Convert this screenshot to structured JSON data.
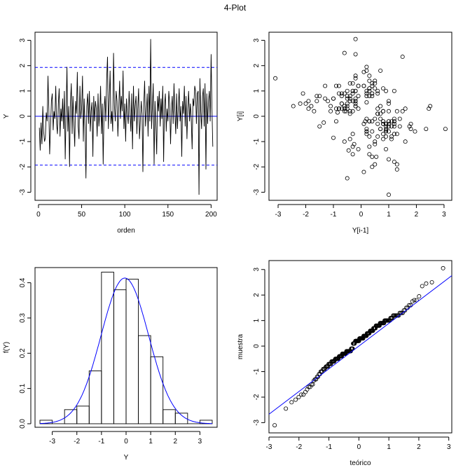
{
  "title": "4-Plot",
  "chart_data": [
    {
      "type": "line",
      "panel": "run-sequence",
      "xlabel": "orden",
      "ylabel": "Y",
      "xlim": [
        -4,
        207
      ],
      "ylim": [
        -3.32,
        3.32
      ],
      "xticks": [
        0,
        50,
        100,
        150,
        200
      ],
      "yticks": [
        -3,
        -2,
        -1,
        0,
        1,
        2,
        3
      ],
      "hlines": [
        {
          "y": 1.93,
          "color": "#0000ff",
          "style": "dashed"
        },
        {
          "y": 0,
          "color": "#0000ff",
          "style": "solid"
        },
        {
          "y": -1.93,
          "color": "#0000ff",
          "style": "dashed"
        }
      ],
      "y": [
        -0.45,
        -1.35,
        -0.25,
        -1.1,
        0.4,
        -0.6,
        -1.0,
        -0.85,
        0.15,
        -0.2,
        1.6,
        0.3,
        -1.5,
        -0.4,
        0.6,
        0.9,
        -0.55,
        0.2,
        -0.1,
        1.2,
        -0.3,
        -0.7,
        0.5,
        1.1,
        -0.8,
        0.3,
        -0.2,
        0.7,
        -0.5,
        1.0,
        -1.7,
        0.2,
        1.95,
        -0.6,
        0.4,
        -2.0,
        0.5,
        1.3,
        -0.7,
        0.8,
        -0.3,
        -1.2,
        0.6,
        0.1,
        1.75,
        -0.4,
        -0.9,
        1.2,
        -0.1,
        0.3,
        1.6,
        -1.0,
        0.7,
        -0.5,
        -2.45,
        0.4,
        0.9,
        -0.3,
        1.0,
        -0.6,
        0.2,
        0.55,
        -1.6,
        0.8,
        -0.2,
        0.6,
        0.3,
        -0.8,
        0.9,
        -0.4,
        0.1,
        1.2,
        -0.7,
        0.5,
        -1.9,
        0.3,
        0.8,
        -0.2,
        1.5,
        2.35,
        -0.5,
        0.7,
        1.8,
        -0.3,
        0.2,
        -0.6,
        2.5,
        0.4,
        -0.2,
        1.0,
        0.6,
        -0.8,
        0.3,
        1.4,
        -0.1,
        0.8,
        0.2,
        1.8,
        -0.5,
        0.5,
        -1.0,
        0.7,
        0.1,
        -0.3,
        1.0,
        0.2,
        -0.6,
        0.9,
        -1.3,
        1.2,
        -0.2,
        0.4,
        0.8,
        -0.7,
        0.3,
        1.1,
        -0.9,
        -0.2,
        0.6,
        0.1,
        -2.2,
        0.5,
        1.4,
        -0.4,
        0.2,
        0.9,
        -0.8,
        1.2,
        -0.2,
        3.05,
        -0.5,
        0.4,
        1.3,
        -1.9,
        0.6,
        -0.3,
        -1.5,
        0.8,
        0.2,
        1.0,
        -0.4,
        0.7,
        -0.1,
        1.2,
        -1.8,
        0.4,
        0.9,
        -0.6,
        0.3,
        -0.2,
        1.0,
        0.5,
        -1.1,
        0.2,
        0.8,
        -0.3,
        1.3,
        0.2,
        -0.7,
        0.9,
        -0.5,
        0.3,
        1.1,
        -0.2,
        0.4,
        -1.6,
        0.6,
        0.1,
        1.2,
        -0.4,
        0.8,
        -0.9,
        0.3,
        1.0,
        -0.2,
        0.5,
        -0.1,
        -1.3,
        0.7,
        0.4,
        1.2,
        1.0,
        -0.3,
        0.9,
        1.0,
        -3.1,
        1.5,
        0.2,
        -0.5,
        0.8,
        1.1,
        -0.4,
        1.3,
        -2.1,
        0.9,
        -0.3,
        0.6,
        1.0,
        -0.2,
        2.45,
        0.3,
        -1.2
      ]
    },
    {
      "type": "scatter",
      "panel": "lag",
      "xlabel": "Y[i-1]",
      "ylabel": "Y[i]",
      "xlim": [
        -3.33,
        3.28
      ],
      "ylim": [
        -3.32,
        3.32
      ],
      "xticks": [
        -3,
        -2,
        -1,
        0,
        1,
        2,
        3
      ],
      "yticks": [
        -3,
        -2,
        -1,
        0,
        1,
        2,
        3
      ]
    },
    {
      "type": "bar",
      "panel": "histogram",
      "xlabel": "Y",
      "ylabel": "f(Y)",
      "xlim": [
        -3.7,
        3.7
      ],
      "ylim": [
        -0.01,
        0.443
      ],
      "xticks": [
        -3,
        -2,
        -1,
        0,
        1,
        2,
        3
      ],
      "yticks": [
        0.0,
        0.1,
        0.2,
        0.3,
        0.4
      ],
      "ytick_labels": [
        "0.0",
        "0.1",
        "0.2",
        "0.3",
        "0.4"
      ],
      "bin_edges": [
        -3.5,
        -3.0,
        -2.5,
        -2.0,
        -1.5,
        -1.0,
        -0.5,
        0.0,
        0.5,
        1.0,
        1.5,
        2.0,
        2.5,
        3.0,
        3.5
      ],
      "values": [
        0.01,
        0.0,
        0.04,
        0.05,
        0.15,
        0.43,
        0.38,
        0.41,
        0.25,
        0.19,
        0.04,
        0.03,
        0.0,
        0.01
      ],
      "density_curve": {
        "mean": -0.05,
        "sd": 0.965,
        "color": "#0000ff"
      }
    },
    {
      "type": "scatter",
      "panel": "normal-qq",
      "xlabel": "teórico",
      "ylabel": "muestra",
      "xlim": [
        -3.0,
        3.1
      ],
      "ylim": [
        -3.4,
        3.35
      ],
      "xticks": [
        -3,
        -2,
        -1,
        0,
        1,
        2,
        3
      ],
      "yticks": [
        -3,
        -2,
        -1,
        0,
        1,
        2,
        3
      ],
      "reference_line": {
        "intercept": 0.0,
        "slope": 0.89,
        "color": "#0000ff"
      }
    }
  ]
}
